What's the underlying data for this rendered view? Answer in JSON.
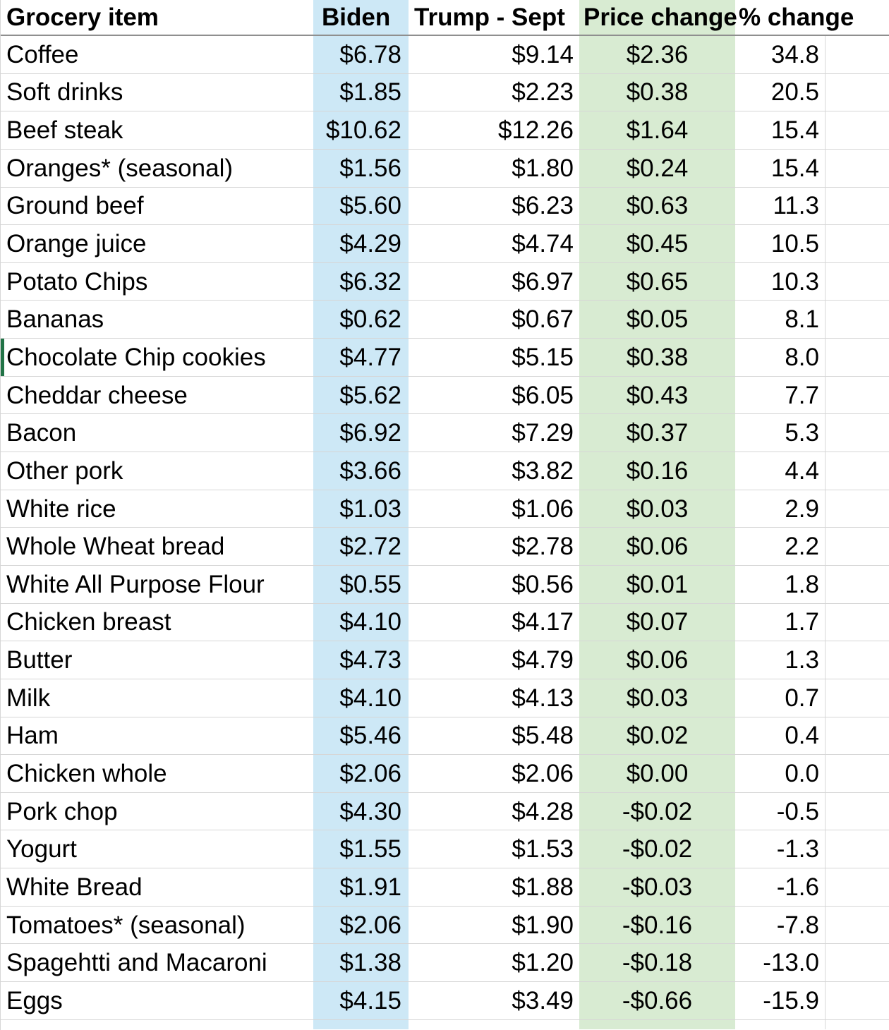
{
  "table": {
    "header": {
      "grocery_item": "Grocery item",
      "biden": "Biden",
      "trump": "Trump - Sept",
      "price_change": "Price change",
      "pct_change": "% change"
    },
    "rows": [
      {
        "item": "Coffee",
        "biden": "$6.78",
        "trump": "$9.14",
        "price_change": "$2.36",
        "pct_change": "34.8"
      },
      {
        "item": "Soft drinks",
        "biden": "$1.85",
        "trump": "$2.23",
        "price_change": "$0.38",
        "pct_change": "20.5"
      },
      {
        "item": "Beef steak",
        "biden": "$10.62",
        "trump": "$12.26",
        "price_change": "$1.64",
        "pct_change": "15.4"
      },
      {
        "item": "Oranges* (seasonal)",
        "biden": "$1.56",
        "trump": "$1.80",
        "price_change": "$0.24",
        "pct_change": "15.4"
      },
      {
        "item": "Ground beef",
        "biden": "$5.60",
        "trump": "$6.23",
        "price_change": "$0.63",
        "pct_change": "11.3"
      },
      {
        "item": "Orange juice",
        "biden": "$4.29",
        "trump": "$4.74",
        "price_change": "$0.45",
        "pct_change": "10.5"
      },
      {
        "item": "Potato Chips",
        "biden": "$6.32",
        "trump": "$6.97",
        "price_change": "$0.65",
        "pct_change": "10.3"
      },
      {
        "item": "Bananas",
        "biden": "$0.62",
        "trump": "$0.67",
        "price_change": "$0.05",
        "pct_change": "8.1"
      },
      {
        "item": "Chocolate Chip cookies",
        "biden": "$4.77",
        "trump": "$5.15",
        "price_change": "$0.38",
        "pct_change": "8.0",
        "edge_marker": true
      },
      {
        "item": "Cheddar cheese",
        "biden": "$5.62",
        "trump": "$6.05",
        "price_change": "$0.43",
        "pct_change": "7.7"
      },
      {
        "item": "Bacon",
        "biden": "$6.92",
        "trump": "$7.29",
        "price_change": "$0.37",
        "pct_change": "5.3"
      },
      {
        "item": "Other pork",
        "biden": "$3.66",
        "trump": "$3.82",
        "price_change": "$0.16",
        "pct_change": "4.4"
      },
      {
        "item": "White rice",
        "biden": "$1.03",
        "trump": "$1.06",
        "price_change": "$0.03",
        "pct_change": "2.9"
      },
      {
        "item": "Whole Wheat bread",
        "biden": "$2.72",
        "trump": "$2.78",
        "price_change": "$0.06",
        "pct_change": "2.2"
      },
      {
        "item": "White All Purpose Flour",
        "biden": "$0.55",
        "trump": "$0.56",
        "price_change": "$0.01",
        "pct_change": "1.8"
      },
      {
        "item": "Chicken breast",
        "biden": "$4.10",
        "trump": "$4.17",
        "price_change": "$0.07",
        "pct_change": "1.7"
      },
      {
        "item": "Butter",
        "biden": "$4.73",
        "trump": "$4.79",
        "price_change": "$0.06",
        "pct_change": "1.3"
      },
      {
        "item": "Milk",
        "biden": "$4.10",
        "trump": "$4.13",
        "price_change": "$0.03",
        "pct_change": "0.7"
      },
      {
        "item": "Ham",
        "biden": "$5.46",
        "trump": "$5.48",
        "price_change": "$0.02",
        "pct_change": "0.4"
      },
      {
        "item": "Chicken whole",
        "biden": "$2.06",
        "trump": "$2.06",
        "price_change": "$0.00",
        "pct_change": "0.0"
      },
      {
        "item": "Pork chop",
        "biden": "$4.30",
        "trump": "$4.28",
        "price_change": "-$0.02",
        "pct_change": "-0.5"
      },
      {
        "item": "Yogurt",
        "biden": "$1.55",
        "trump": "$1.53",
        "price_change": "-$0.02",
        "pct_change": "-1.3"
      },
      {
        "item": "White Bread",
        "biden": "$1.91",
        "trump": "$1.88",
        "price_change": "-$0.03",
        "pct_change": "-1.6"
      },
      {
        "item": "Tomatoes* (seasonal)",
        "biden": "$2.06",
        "trump": "$1.90",
        "price_change": "-$0.16",
        "pct_change": "-7.8"
      },
      {
        "item": "Spagehtti and Macaroni",
        "biden": "$1.38",
        "trump": "$1.20",
        "price_change": "-$0.18",
        "pct_change": "-13.0"
      },
      {
        "item": "Eggs",
        "biden": "$4.15",
        "trump": "$3.49",
        "price_change": "-$0.66",
        "pct_change": "-15.9"
      }
    ]
  },
  "colors": {
    "biden_fill": "#cde8f6",
    "price_change_fill": "#d8ebd2",
    "grid": "#d6d6d6",
    "header_border": "#8f8f8f",
    "row_marker": "#217346"
  }
}
